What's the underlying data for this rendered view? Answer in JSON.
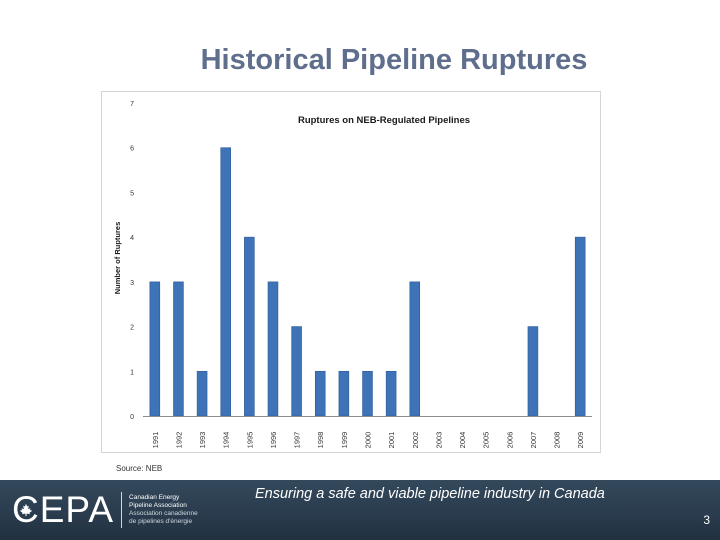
{
  "slide": {
    "title": "Historical Pipeline Ruptures",
    "source": "Source: NEB",
    "page_number": "3"
  },
  "footer": {
    "tagline": "Ensuring a safe and viable pipeline industry in Canada",
    "logo": {
      "mark": "CEPA",
      "line1": "Canadian Energy",
      "line2": "Pipeline Association",
      "line3": "Association canadienne",
      "line4": "de pipelines d'énergie"
    }
  },
  "colors": {
    "bar_fill": "#3f73b8",
    "bar_edge": "#2c5a96",
    "title": "#5f6e8c",
    "footer_bg": "#2a3c4e"
  },
  "chart_data": {
    "type": "bar",
    "title": "Ruptures on NEB-Regulated Pipelines",
    "xlabel": "",
    "ylabel": "Number of Ruptures",
    "ylim": [
      0,
      7
    ],
    "yticks": [
      0,
      1,
      2,
      3,
      4,
      5,
      6,
      7
    ],
    "grid": false,
    "legend": "none",
    "categories": [
      "1991",
      "1992",
      "1993",
      "1994",
      "1995",
      "1996",
      "1997",
      "1998",
      "1999",
      "2000",
      "2001",
      "2002",
      "2003",
      "2004",
      "2005",
      "2006",
      "2007",
      "2008",
      "2009"
    ],
    "values": [
      3,
      3,
      1,
      6,
      4,
      3,
      2,
      1,
      1,
      1,
      1,
      3,
      0,
      0,
      0,
      0,
      2,
      0,
      4
    ]
  }
}
